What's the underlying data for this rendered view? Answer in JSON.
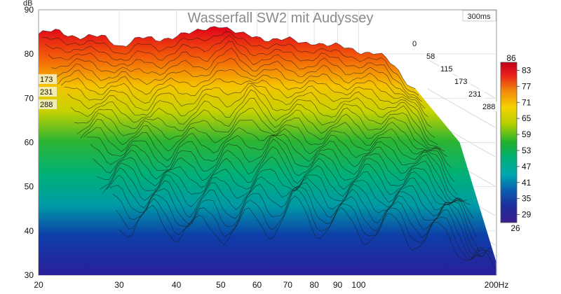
{
  "chart_data": {
    "type": "waterfall",
    "title": "Wasserfall SW2 mit Audyssey",
    "ylabel": "dB",
    "xlabel": "",
    "x_unit": "Hz",
    "x_scale": "log",
    "xlim": [
      20,
      200
    ],
    "ylim": [
      30,
      90
    ],
    "x_ticks": [
      {
        "value": 20,
        "label": "20"
      },
      {
        "value": 30,
        "label": "30"
      },
      {
        "value": 40,
        "label": "40"
      },
      {
        "value": 50,
        "label": "50"
      },
      {
        "value": 60,
        "label": "60"
      },
      {
        "value": 70,
        "label": "70"
      },
      {
        "value": 80,
        "label": "80"
      },
      {
        "value": 90,
        "label": "90"
      },
      {
        "value": 100,
        "label": "100"
      },
      {
        "value": 200,
        "label": "200Hz"
      }
    ],
    "y_ticks": [
      {
        "value": 30,
        "label": "30"
      },
      {
        "value": 40,
        "label": "40"
      },
      {
        "value": 50,
        "label": "50"
      },
      {
        "value": 60,
        "label": "60"
      },
      {
        "value": 70,
        "label": "70"
      },
      {
        "value": 80,
        "label": "80"
      },
      {
        "value": 90,
        "label": "90"
      }
    ],
    "time_badge": "300ms",
    "time_slice_labels": [
      "0",
      "58",
      "115",
      "173",
      "231",
      "288"
    ],
    "time_labels_left": [
      "173",
      "231",
      "288"
    ],
    "colorbar": {
      "min": 26,
      "max": 86,
      "top_label": "86",
      "bottom_label": "26",
      "tick_labels": [
        "83",
        "77",
        "71",
        "65",
        "59",
        "53",
        "47",
        "41",
        "35",
        "29"
      ]
    },
    "front_slice": {
      "time_ms": 0,
      "x": [
        20,
        22,
        25,
        28,
        30,
        33,
        36,
        40,
        44,
        47,
        50,
        53,
        56,
        60,
        65,
        70,
        75,
        80,
        85,
        90,
        100,
        110,
        120,
        130
      ],
      "y": [
        84.5,
        85,
        84,
        83.5,
        82,
        83.5,
        83,
        84.5,
        84.5,
        86,
        87,
        85,
        84,
        84,
        83.5,
        83,
        82.5,
        83,
        82,
        81.5,
        81,
        80,
        77,
        73
      ]
    },
    "grid": true
  }
}
